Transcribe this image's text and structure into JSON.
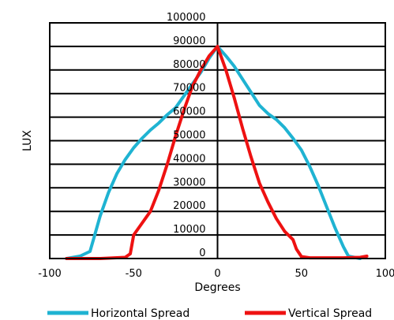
{
  "chart_data": {
    "type": "line",
    "xlabel": "Degrees",
    "ylabel": "LUX",
    "xlim": [
      -100,
      100
    ],
    "ylim": [
      0,
      100000
    ],
    "x_ticks": [
      "-100",
      "-50",
      "0",
      "50",
      "100"
    ],
    "y_ticks": [
      "0",
      "10000",
      "20000",
      "30000",
      "40000",
      "50000",
      "60000",
      "70000",
      "80000",
      "90000",
      "100000"
    ],
    "grid": "horizontal",
    "legend_position": "bottom",
    "series": [
      {
        "name": "Horizontal Spread",
        "color": "#1fb3d2",
        "points": [
          [
            -90,
            0
          ],
          [
            -82,
            1000
          ],
          [
            -76,
            3000
          ],
          [
            -74,
            8000
          ],
          [
            -70,
            18000
          ],
          [
            -65,
            28000
          ],
          [
            -60,
            36000
          ],
          [
            -55,
            42000
          ],
          [
            -50,
            47000
          ],
          [
            -45,
            51000
          ],
          [
            -40,
            54500
          ],
          [
            -35,
            57500
          ],
          [
            -30,
            61000
          ],
          [
            -25,
            64000
          ],
          [
            -20,
            69000
          ],
          [
            -15,
            74000
          ],
          [
            -10,
            79000
          ],
          [
            -5,
            85000
          ],
          [
            0,
            90000
          ],
          [
            5,
            86000
          ],
          [
            10,
            81500
          ],
          [
            15,
            76000
          ],
          [
            20,
            70500
          ],
          [
            25,
            65000
          ],
          [
            30,
            61500
          ],
          [
            35,
            59000
          ],
          [
            40,
            55500
          ],
          [
            45,
            51000
          ],
          [
            50,
            46000
          ],
          [
            55,
            39000
          ],
          [
            60,
            31000
          ],
          [
            65,
            22000
          ],
          [
            70,
            13000
          ],
          [
            75,
            5000
          ],
          [
            78,
            1000
          ],
          [
            85,
            0
          ]
        ]
      },
      {
        "name": "Vertical Spread",
        "color": "#ee1111",
        "points": [
          [
            -90,
            0
          ],
          [
            -70,
            0
          ],
          [
            -55,
            500
          ],
          [
            -52,
            2000
          ],
          [
            -50,
            10000
          ],
          [
            -46,
            14000
          ],
          [
            -40,
            20000
          ],
          [
            -35,
            29000
          ],
          [
            -30,
            40000
          ],
          [
            -25,
            52000
          ],
          [
            -20,
            63000
          ],
          [
            -15,
            73000
          ],
          [
            -10,
            80000
          ],
          [
            -5,
            86000
          ],
          [
            0,
            90000
          ],
          [
            5,
            80000
          ],
          [
            10,
            68000
          ],
          [
            15,
            55000
          ],
          [
            20,
            43000
          ],
          [
            25,
            32000
          ],
          [
            30,
            24000
          ],
          [
            35,
            17000
          ],
          [
            40,
            11500
          ],
          [
            45,
            8000
          ],
          [
            47,
            4000
          ],
          [
            50,
            800
          ],
          [
            55,
            300
          ],
          [
            65,
            300
          ],
          [
            75,
            300
          ],
          [
            85,
            500
          ],
          [
            89,
            1000
          ]
        ]
      }
    ]
  }
}
